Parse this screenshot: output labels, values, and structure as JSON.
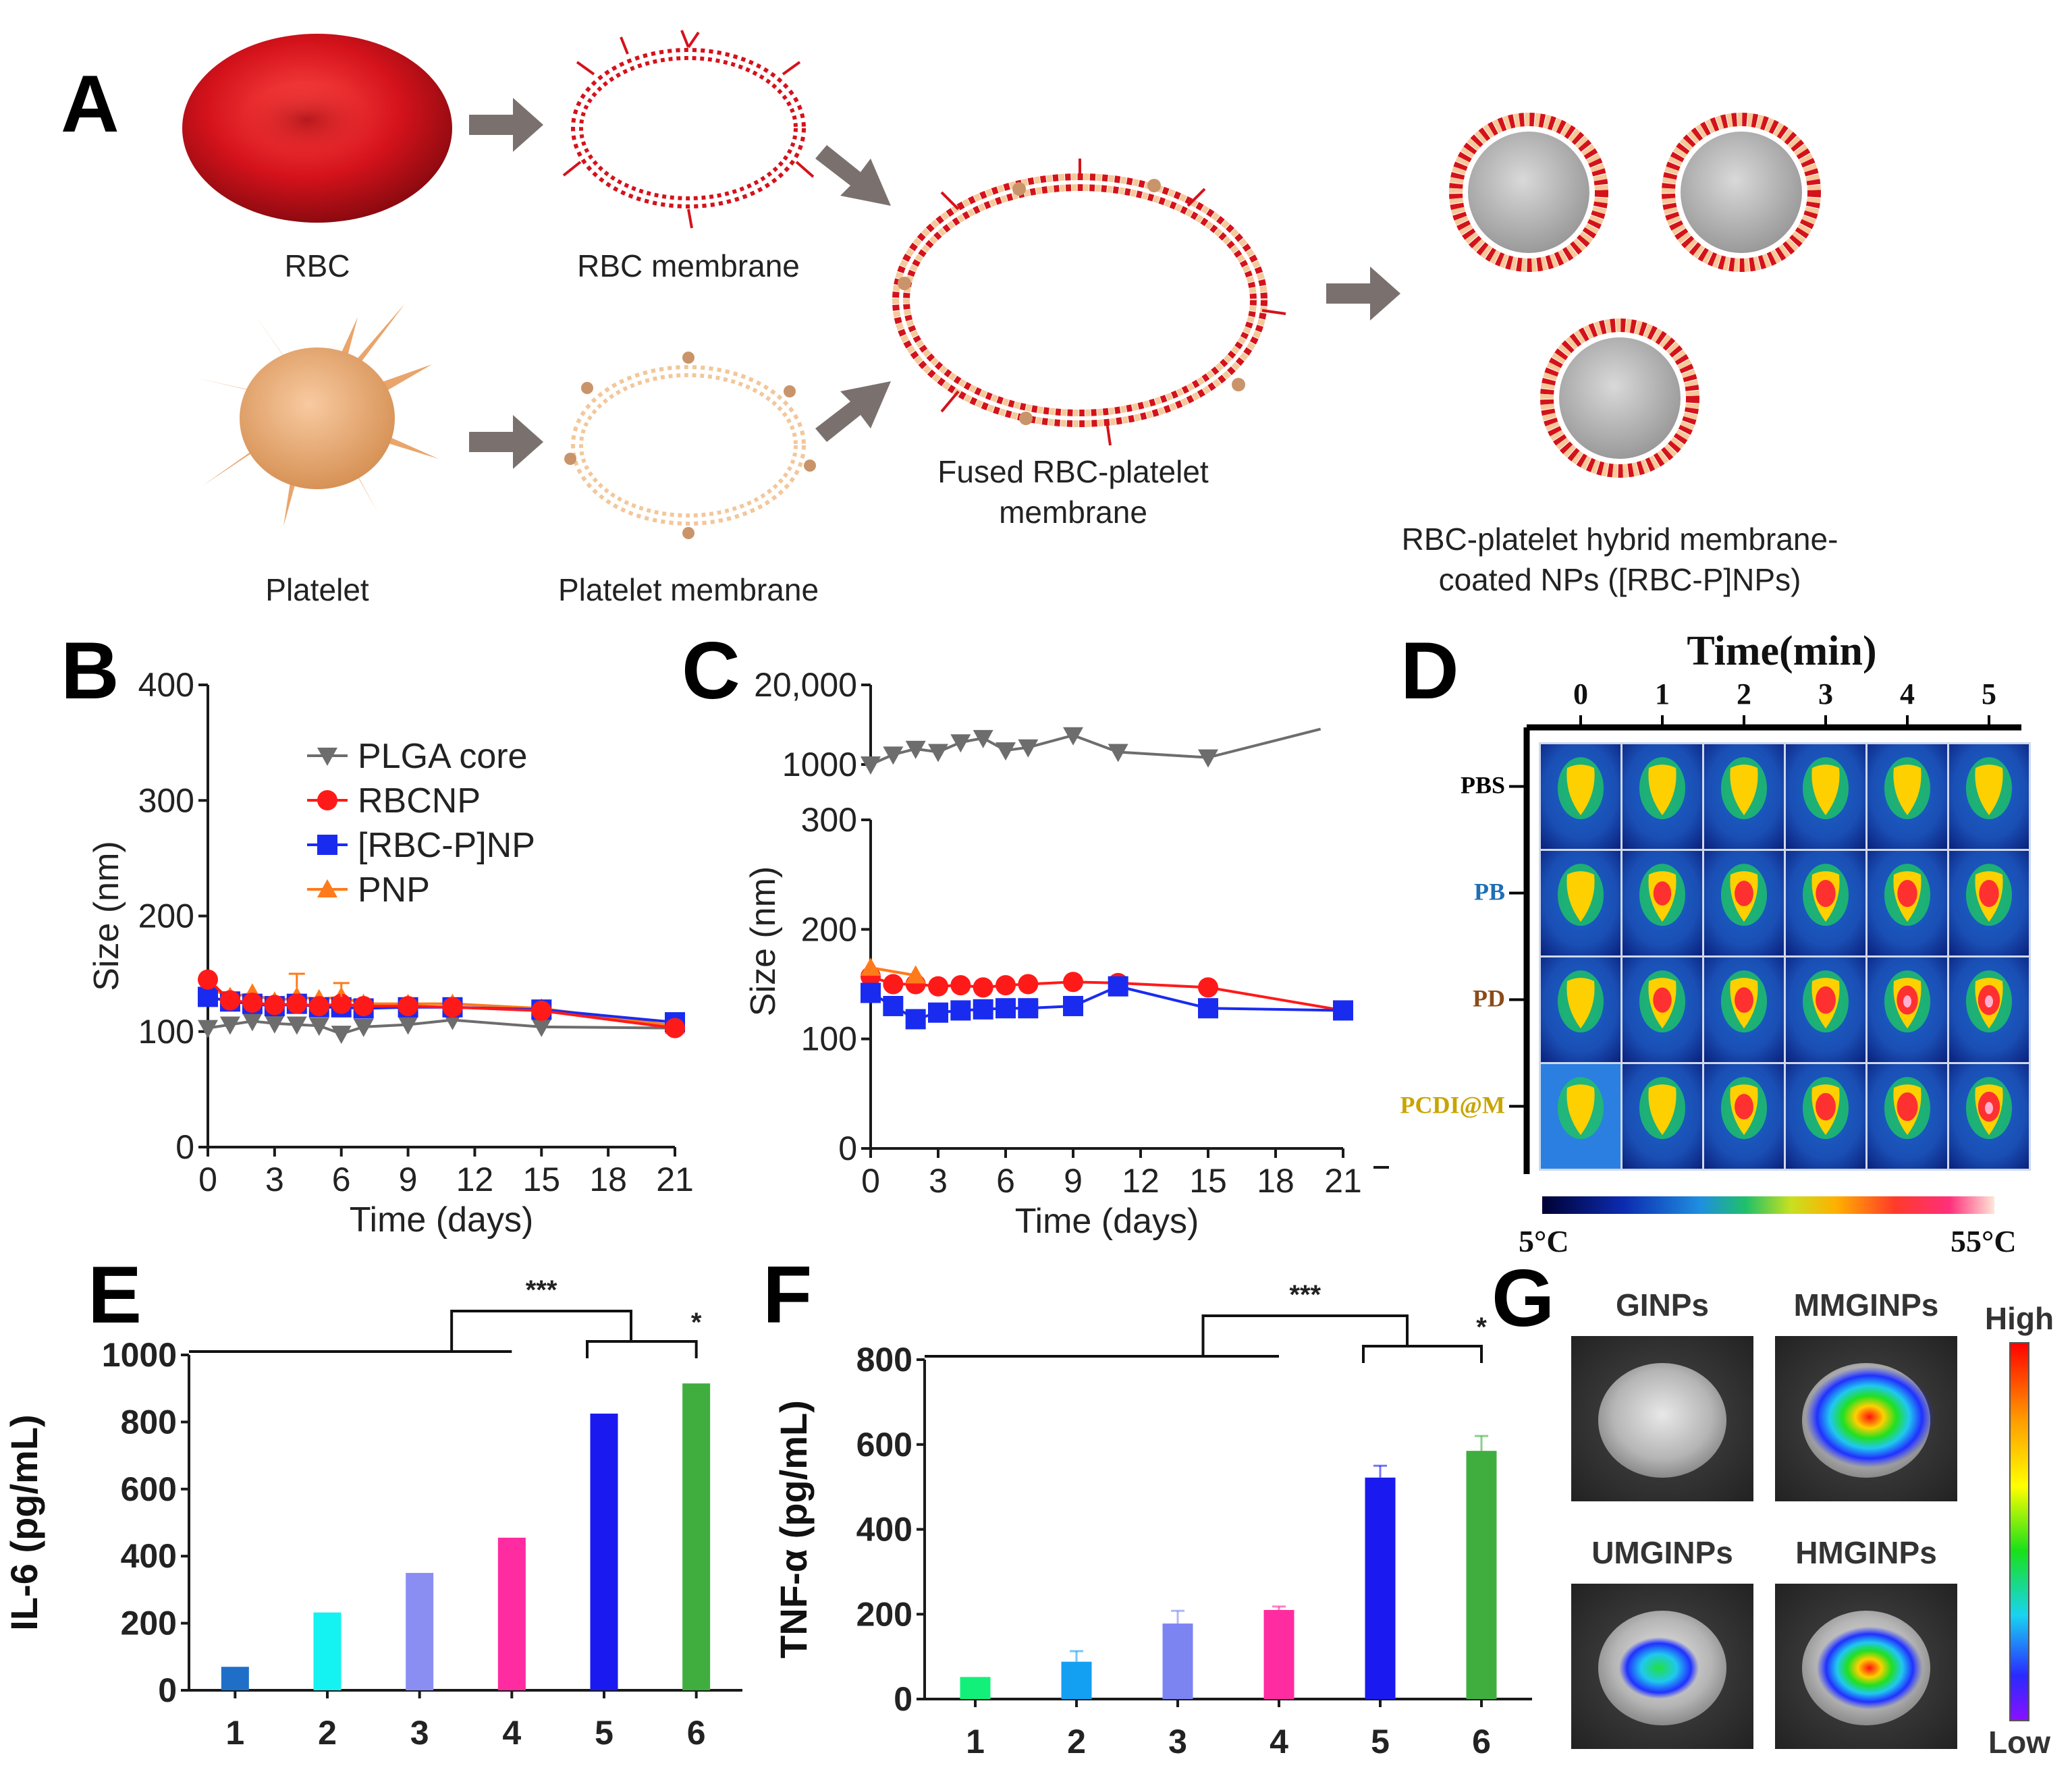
{
  "panels": {
    "A": {
      "letter": "A",
      "labels": {
        "rbc": "RBC",
        "rbc_membrane": "RBC membrane",
        "platelet": "Platelet",
        "platelet_membrane": "Platelet membrane",
        "fused_line1": "Fused RBC-platelet",
        "fused_line2": "membrane",
        "hybrid_line1": "RBC-platelet hybrid membrane-",
        "hybrid_line2": "coated NPs ([RBC-P]NPs)"
      },
      "colors": {
        "rbc": "#d4121b",
        "platelet": "#f2b880",
        "arrow": "#7a716f",
        "core": "#b8b8b8"
      }
    },
    "B": {
      "letter": "B"
    },
    "C": {
      "letter": "C"
    },
    "D": {
      "letter": "D",
      "title": "Time(min)",
      "columns": [
        "0",
        "1",
        "2",
        "3",
        "4",
        "5"
      ],
      "rows": [
        {
          "label": "PBS",
          "color": "#000000"
        },
        {
          "label": "PB",
          "color": "#1f6fb5"
        },
        {
          "label": "PD",
          "color": "#8a4b1a"
        },
        {
          "label": "PCDI@M",
          "color": "#c9a400"
        }
      ],
      "colorbar_min": "5°C",
      "colorbar_max": "55°C",
      "spot_intensity": [
        [
          0.3,
          0.3,
          0.3,
          0.3,
          0.3,
          0.3
        ],
        [
          0.3,
          0.55,
          0.62,
          0.7,
          0.7,
          0.7
        ],
        [
          0.3,
          0.6,
          0.62,
          0.72,
          0.8,
          0.85
        ],
        [
          0.3,
          0.5,
          0.62,
          0.72,
          0.78,
          0.85
        ]
      ]
    },
    "E": {
      "letter": "E"
    },
    "F": {
      "letter": "F"
    },
    "G": {
      "letter": "G",
      "images": [
        "GINPs",
        "MMGINPs",
        "UMGINPs",
        "HMGINPs"
      ],
      "scale_high": "High",
      "scale_low": "Low",
      "signal": [
        0,
        1.0,
        0.35,
        0.7
      ]
    }
  },
  "chart_data": [
    {
      "panel": "B",
      "type": "line",
      "xlabel": "Time (days)",
      "ylabel": "Size (nm)",
      "xlim": [
        0,
        21
      ],
      "ylim": [
        0,
        400
      ],
      "xticks": [
        "0",
        "3",
        "6",
        "9",
        "12",
        "15",
        "18",
        "21"
      ],
      "yticks": [
        "0",
        "100",
        "200",
        "300",
        "400"
      ],
      "legend_position": "top-left",
      "series": [
        {
          "name": "PLGA core",
          "color": "#6d6d6d",
          "marker": "triangle-down",
          "x": [
            0,
            1,
            2,
            3,
            4,
            5,
            6,
            7,
            9,
            11,
            15,
            21
          ],
          "y": [
            103,
            106,
            109,
            107,
            106,
            105,
            98,
            104,
            106,
            110,
            104,
            103
          ]
        },
        {
          "name": "RBCNP",
          "color": "#ff1a1a",
          "marker": "circle",
          "x": [
            0,
            1,
            2,
            3,
            4,
            5,
            6,
            7,
            9,
            11,
            15,
            21
          ],
          "y": [
            145,
            127,
            125,
            123,
            124,
            122,
            124,
            122,
            122,
            121,
            118,
            103
          ]
        },
        {
          "name": "[RBC-P]NP",
          "color": "#1a2bf0",
          "marker": "square",
          "x": [
            0,
            1,
            2,
            3,
            4,
            5,
            6,
            7,
            9,
            11,
            15,
            21
          ],
          "y": [
            130,
            126,
            124,
            122,
            124,
            121,
            121,
            120,
            121,
            121,
            119,
            108
          ]
        },
        {
          "name": "PNP",
          "color": "#ff7a1a",
          "marker": "triangle-up",
          "x": [
            0,
            1,
            2,
            3,
            4,
            5,
            6,
            7,
            9,
            11,
            15,
            21
          ],
          "y": [
            138,
            130,
            133,
            126,
            130,
            128,
            130,
            124,
            124,
            124,
            120,
            105
          ]
        }
      ]
    },
    {
      "panel": "C",
      "type": "line",
      "xlabel": "Time (days)",
      "ylabel": "Size (nm)",
      "xlim": [
        0,
        21
      ],
      "ylim": [
        0,
        300
      ],
      "xticks": [
        "0",
        "3",
        "6",
        "9",
        "12",
        "15",
        "18",
        "21"
      ],
      "yticks": [
        "0",
        "100",
        "200",
        "300"
      ],
      "upper_yticks": [
        "1000",
        "20,000"
      ],
      "series": [
        {
          "name": "",
          "color": "#6d6d6d",
          "marker": "triangle-down",
          "axis": "upper",
          "x": [
            0,
            1,
            2,
            3,
            4,
            5,
            6,
            7,
            9,
            11,
            15,
            20
          ],
          "y": [
            1000,
            1450,
            1800,
            1600,
            2300,
            2700,
            1700,
            1900,
            3000,
            1600,
            1300,
            3800
          ]
        },
        {
          "name": "",
          "color": "#ff1a1a",
          "marker": "circle",
          "x": [
            0,
            1,
            2,
            3,
            4,
            5,
            6,
            7,
            9,
            11,
            15,
            21
          ],
          "y": [
            157,
            150,
            150,
            148,
            149,
            147,
            149,
            150,
            152,
            151,
            147,
            126
          ]
        },
        {
          "name": "",
          "color": "#ff7a1a",
          "marker": "triangle-up",
          "x": [
            0,
            2
          ],
          "y": [
            165,
            158
          ]
        },
        {
          "name": "",
          "color": "#1a2bf0",
          "marker": "square",
          "x": [
            0,
            1,
            2,
            3,
            4,
            5,
            6,
            7,
            9,
            11,
            15,
            21
          ],
          "y": [
            142,
            130,
            118,
            124,
            126,
            127,
            128,
            128,
            130,
            148,
            128,
            126
          ]
        }
      ]
    },
    {
      "panel": "E",
      "type": "bar",
      "ylabel": "IL-6 (pg/mL)",
      "categories": [
        "1",
        "2",
        "3",
        "4",
        "5",
        "6"
      ],
      "values": [
        70,
        232,
        350,
        455,
        825,
        915
      ],
      "colors": [
        "#1f6fc9",
        "#14f2f2",
        "#8a8ef2",
        "#ff2ba0",
        "#1a1af0",
        "#3fae3f"
      ],
      "ylim": [
        0,
        1000
      ],
      "yticks": [
        "0",
        "200",
        "400",
        "600",
        "800",
        "1000"
      ],
      "significance": [
        "***",
        "*"
      ]
    },
    {
      "panel": "F",
      "type": "bar",
      "ylabel": "TNF-α  (pg/mL)",
      "categories": [
        "1",
        "2",
        "3",
        "4",
        "5",
        "6"
      ],
      "values": [
        52,
        88,
        178,
        210,
        522,
        585
      ],
      "errors": [
        0,
        25,
        30,
        8,
        28,
        35
      ],
      "colors": [
        "#13f07a",
        "#14a0f2",
        "#7c84f2",
        "#ff2ba0",
        "#1a1af0",
        "#3fae3f"
      ],
      "ylim": [
        0,
        800
      ],
      "yticks": [
        "0",
        "200",
        "400",
        "600",
        "800"
      ],
      "significance": [
        "***",
        "*"
      ]
    }
  ]
}
